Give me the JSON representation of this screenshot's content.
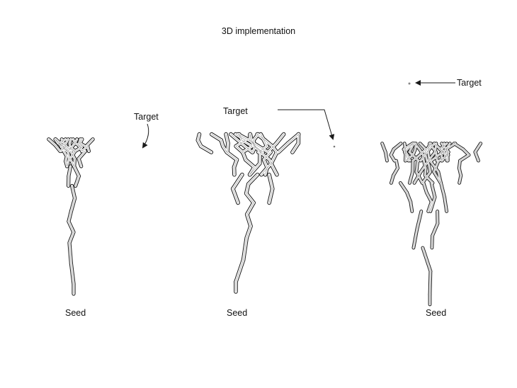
{
  "title": "3D implementation",
  "panels": [
    {
      "target_label": "Target",
      "seed_label": "Seed"
    },
    {
      "target_label": "Target",
      "seed_label": "Seed"
    },
    {
      "target_label": "Target",
      "seed_label": "Seed"
    }
  ],
  "colors": {
    "ink": "#1a1a1a",
    "fill": "#ffffff",
    "shade": "#d8d8d8"
  }
}
